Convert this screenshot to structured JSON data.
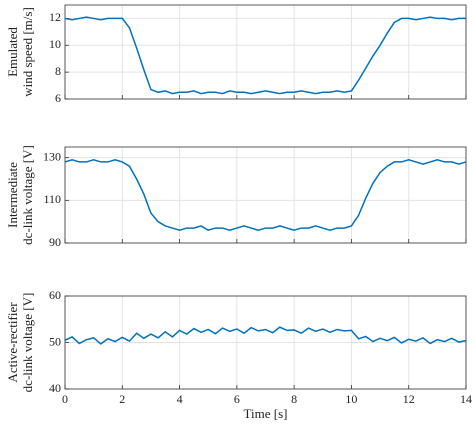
{
  "chart_data": [
    {
      "type": "line",
      "ylabel": [
        "Emulated",
        "wind speed [m/s]"
      ],
      "x": [
        0,
        0.25,
        0.5,
        0.75,
        1,
        1.25,
        1.5,
        1.75,
        2,
        2.25,
        2.5,
        2.75,
        3,
        3.25,
        3.5,
        3.75,
        4,
        4.25,
        4.5,
        4.75,
        5,
        5.25,
        5.5,
        5.75,
        6,
        6.25,
        6.5,
        6.75,
        7,
        7.25,
        7.5,
        7.75,
        8,
        8.25,
        8.5,
        8.75,
        9,
        9.25,
        9.5,
        9.75,
        10,
        10.25,
        10.5,
        10.75,
        11,
        11.25,
        11.5,
        11.75,
        12,
        12.25,
        12.5,
        12.75,
        13,
        13.25,
        13.5,
        13.75,
        14
      ],
      "series": [
        {
          "color": "#0072bd",
          "values": [
            12.0,
            11.9,
            12.0,
            12.1,
            12.0,
            11.9,
            12.0,
            12.0,
            12.0,
            11.3,
            9.8,
            8.2,
            6.7,
            6.5,
            6.6,
            6.4,
            6.5,
            6.5,
            6.6,
            6.4,
            6.5,
            6.5,
            6.4,
            6.6,
            6.5,
            6.5,
            6.4,
            6.5,
            6.6,
            6.5,
            6.4,
            6.5,
            6.5,
            6.6,
            6.5,
            6.4,
            6.5,
            6.5,
            6.6,
            6.5,
            6.6,
            7.4,
            8.3,
            9.2,
            10.0,
            10.9,
            11.7,
            12.0,
            12.0,
            11.9,
            12.0,
            12.1,
            12.0,
            12.0,
            11.9,
            12.0,
            12.0
          ]
        }
      ],
      "xlim": [
        0,
        14
      ],
      "xticks": [
        0,
        2,
        4,
        6,
        8,
        10,
        12,
        14
      ],
      "show_xtick_labels": false,
      "ylim": [
        6,
        13
      ],
      "yticks": [
        6,
        8,
        10,
        12
      ],
      "grid": true
    },
    {
      "type": "line",
      "ylabel": [
        "Intermediate",
        "dc-link voltage [V]"
      ],
      "x": [
        0,
        0.25,
        0.5,
        0.75,
        1,
        1.25,
        1.5,
        1.75,
        2,
        2.25,
        2.5,
        2.75,
        3,
        3.25,
        3.5,
        3.75,
        4,
        4.25,
        4.5,
        4.75,
        5,
        5.25,
        5.5,
        5.75,
        6,
        6.25,
        6.5,
        6.75,
        7,
        7.25,
        7.5,
        7.75,
        8,
        8.25,
        8.5,
        8.75,
        9,
        9.25,
        9.5,
        9.75,
        10,
        10.25,
        10.5,
        10.75,
        11,
        11.25,
        11.5,
        11.75,
        12,
        12.25,
        12.5,
        12.75,
        13,
        13.25,
        13.5,
        13.75,
        14
      ],
      "series": [
        {
          "color": "#0072bd",
          "values": [
            128,
            129,
            128,
            128,
            129,
            128,
            128,
            129,
            128,
            126,
            120,
            113,
            104,
            100,
            98,
            97,
            96,
            97,
            97,
            98,
            96,
            97,
            97,
            96,
            97,
            98,
            97,
            96,
            97,
            97,
            98,
            97,
            96,
            97,
            97,
            98,
            97,
            96,
            97,
            97,
            98,
            103,
            111,
            118,
            123,
            126,
            128,
            128,
            129,
            128,
            127,
            128,
            129,
            128,
            128,
            127,
            128
          ]
        }
      ],
      "xlim": [
        0,
        14
      ],
      "xticks": [
        0,
        2,
        4,
        6,
        8,
        10,
        12,
        14
      ],
      "show_xtick_labels": false,
      "ylim": [
        90,
        135
      ],
      "yticks": [
        90,
        110,
        130
      ],
      "grid": true
    },
    {
      "type": "line",
      "ylabel": [
        "Active-rectifier",
        "dc-link voltage [V]"
      ],
      "xlabel": "Time [s]",
      "x": [
        0,
        0.25,
        0.5,
        0.75,
        1,
        1.25,
        1.5,
        1.75,
        2,
        2.25,
        2.5,
        2.75,
        3,
        3.25,
        3.5,
        3.75,
        4,
        4.25,
        4.5,
        4.75,
        5,
        5.25,
        5.5,
        5.75,
        6,
        6.25,
        6.5,
        6.75,
        7,
        7.25,
        7.5,
        7.75,
        8,
        8.25,
        8.5,
        8.75,
        9,
        9.25,
        9.5,
        9.75,
        10,
        10.25,
        10.5,
        10.75,
        11,
        11.25,
        11.5,
        11.75,
        12,
        12.25,
        12.5,
        12.75,
        13,
        13.25,
        13.5,
        13.75,
        14
      ],
      "series": [
        {
          "color": "#0072bd",
          "values": [
            50.5,
            51.2,
            49.8,
            50.6,
            51.0,
            49.7,
            50.8,
            50.2,
            51.1,
            50.3,
            52.0,
            50.9,
            51.8,
            51.0,
            52.3,
            51.2,
            52.6,
            51.8,
            53.0,
            52.2,
            52.8,
            51.9,
            53.1,
            52.4,
            52.9,
            52.0,
            53.2,
            52.5,
            52.8,
            52.1,
            53.3,
            52.6,
            52.7,
            52.0,
            53.1,
            52.4,
            52.9,
            52.2,
            52.8,
            52.5,
            52.6,
            50.8,
            51.3,
            50.2,
            50.9,
            50.4,
            51.1,
            49.9,
            50.7,
            50.3,
            51.0,
            49.8,
            50.6,
            50.2,
            50.9,
            50.1,
            50.4
          ]
        }
      ],
      "xlim": [
        0,
        14
      ],
      "xticks": [
        0,
        2,
        4,
        6,
        8,
        10,
        12,
        14
      ],
      "show_xtick_labels": true,
      "ylim": [
        40,
        60
      ],
      "yticks": [
        40,
        50,
        60
      ],
      "grid": true
    }
  ]
}
